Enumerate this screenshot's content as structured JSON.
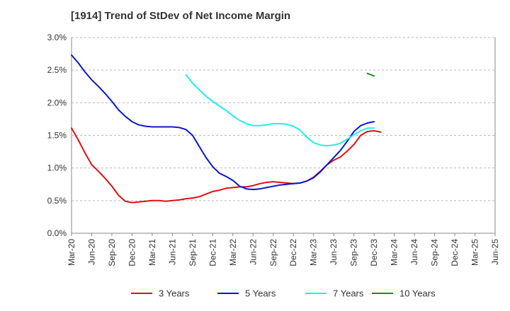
{
  "chart_data": {
    "type": "line",
    "title": "[1914]  Trend of StDev of Net Income Margin",
    "xlabel": "",
    "ylabel": "",
    "ylim": [
      0,
      3.0
    ],
    "yticks": [
      "0.0%",
      "0.5%",
      "1.0%",
      "1.5%",
      "2.0%",
      "2.5%",
      "3.0%"
    ],
    "xticks": [
      "Mar-20",
      "Jun-20",
      "Sep-20",
      "Dec-20",
      "Mar-21",
      "Jun-21",
      "Sep-21",
      "Dec-21",
      "Mar-22",
      "Jun-22",
      "Sep-22",
      "Dec-22",
      "Mar-23",
      "Jun-23",
      "Sep-23",
      "Dec-23",
      "Mar-24",
      "Jun-24",
      "Sep-24",
      "Dec-24",
      "Mar-25",
      "Jun-25"
    ],
    "grid": "horizontal dashed",
    "legend_position": "bottom",
    "series": [
      {
        "name": "3 Years",
        "color": "#dd1111",
        "points": [
          [
            0,
            1.61
          ],
          [
            1,
            1.43
          ],
          [
            2,
            1.23
          ],
          [
            3,
            1.05
          ],
          [
            4,
            0.95
          ],
          [
            5,
            0.84
          ],
          [
            6,
            0.72
          ],
          [
            7,
            0.58
          ],
          [
            8,
            0.49
          ],
          [
            9,
            0.47
          ],
          [
            10,
            0.48
          ],
          [
            11,
            0.49
          ],
          [
            12,
            0.5
          ],
          [
            13,
            0.5
          ],
          [
            14,
            0.49
          ],
          [
            15,
            0.5
          ],
          [
            16,
            0.51
          ],
          [
            17,
            0.53
          ],
          [
            18,
            0.54
          ],
          [
            19,
            0.56
          ],
          [
            20,
            0.6
          ],
          [
            21,
            0.64
          ],
          [
            22,
            0.66
          ],
          [
            23,
            0.69
          ],
          [
            24,
            0.7
          ],
          [
            25,
            0.71
          ],
          [
            26,
            0.71
          ],
          [
            27,
            0.73
          ],
          [
            28,
            0.76
          ],
          [
            29,
            0.78
          ],
          [
            30,
            0.79
          ],
          [
            31,
            0.78
          ],
          [
            32,
            0.77
          ],
          [
            33,
            0.76
          ],
          [
            34,
            0.77
          ],
          [
            35,
            0.8
          ],
          [
            36,
            0.86
          ],
          [
            37,
            0.95
          ],
          [
            38,
            1.05
          ],
          [
            39,
            1.12
          ],
          [
            40,
            1.17
          ],
          [
            41,
            1.26
          ],
          [
            42,
            1.36
          ],
          [
            43,
            1.5
          ],
          [
            44,
            1.56
          ],
          [
            45,
            1.57
          ],
          [
            46,
            1.55
          ]
        ]
      },
      {
        "name": "5 Years",
        "color": "#0a18c8",
        "points": [
          [
            0,
            2.73
          ],
          [
            1,
            2.61
          ],
          [
            2,
            2.47
          ],
          [
            3,
            2.35
          ],
          [
            4,
            2.25
          ],
          [
            5,
            2.14
          ],
          [
            6,
            2.02
          ],
          [
            7,
            1.89
          ],
          [
            8,
            1.79
          ],
          [
            9,
            1.71
          ],
          [
            10,
            1.66
          ],
          [
            11,
            1.64
          ],
          [
            12,
            1.63
          ],
          [
            13,
            1.63
          ],
          [
            14,
            1.63
          ],
          [
            15,
            1.63
          ],
          [
            16,
            1.62
          ],
          [
            17,
            1.59
          ],
          [
            18,
            1.5
          ],
          [
            19,
            1.33
          ],
          [
            20,
            1.16
          ],
          [
            21,
            1.02
          ],
          [
            22,
            0.92
          ],
          [
            23,
            0.87
          ],
          [
            24,
            0.81
          ],
          [
            25,
            0.72
          ],
          [
            26,
            0.68
          ],
          [
            27,
            0.67
          ],
          [
            28,
            0.68
          ],
          [
            29,
            0.7
          ],
          [
            30,
            0.72
          ],
          [
            31,
            0.74
          ],
          [
            32,
            0.75
          ],
          [
            33,
            0.76
          ],
          [
            34,
            0.77
          ],
          [
            35,
            0.8
          ],
          [
            36,
            0.85
          ],
          [
            37,
            0.94
          ],
          [
            38,
            1.05
          ],
          [
            39,
            1.16
          ],
          [
            40,
            1.27
          ],
          [
            41,
            1.41
          ],
          [
            42,
            1.56
          ],
          [
            43,
            1.65
          ],
          [
            44,
            1.69
          ],
          [
            45,
            1.71
          ]
        ]
      },
      {
        "name": "7 Years",
        "color": "#22eeee",
        "points": [
          [
            17,
            2.43
          ],
          [
            18,
            2.3
          ],
          [
            19,
            2.2
          ],
          [
            20,
            2.1
          ],
          [
            21,
            2.02
          ],
          [
            22,
            1.95
          ],
          [
            23,
            1.88
          ],
          [
            24,
            1.8
          ],
          [
            25,
            1.73
          ],
          [
            26,
            1.68
          ],
          [
            27,
            1.65
          ],
          [
            28,
            1.65
          ],
          [
            29,
            1.66
          ],
          [
            30,
            1.68
          ],
          [
            31,
            1.68
          ],
          [
            32,
            1.67
          ],
          [
            33,
            1.64
          ],
          [
            34,
            1.58
          ],
          [
            35,
            1.47
          ],
          [
            36,
            1.39
          ],
          [
            37,
            1.35
          ],
          [
            38,
            1.34
          ],
          [
            39,
            1.35
          ],
          [
            40,
            1.38
          ],
          [
            41,
            1.44
          ],
          [
            42,
            1.51
          ],
          [
            43,
            1.57
          ],
          [
            44,
            1.61
          ],
          [
            45,
            1.61
          ]
        ]
      },
      {
        "name": "10 Years",
        "color": "#1e8a1e",
        "points": [
          [
            44,
            2.45
          ],
          [
            45,
            2.41
          ]
        ]
      }
    ]
  }
}
